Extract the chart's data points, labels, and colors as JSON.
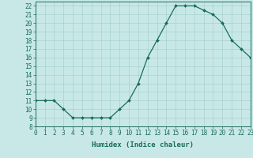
{
  "x": [
    0,
    1,
    2,
    3,
    4,
    5,
    6,
    7,
    8,
    9,
    10,
    11,
    12,
    13,
    14,
    15,
    16,
    17,
    18,
    19,
    20,
    21,
    22,
    23
  ],
  "y": [
    11,
    11,
    11,
    10,
    9,
    9,
    9,
    9,
    9,
    10,
    11,
    13,
    16,
    18,
    20,
    22,
    22,
    22,
    21.5,
    21,
    20,
    18,
    17,
    16
  ],
  "line_color": "#1a6b5a",
  "marker_color": "#1a6b5a",
  "bg_color": "#c8e8e8",
  "grid_color": "#a8d0d0",
  "xlabel": "Humidex (Indice chaleur)",
  "ylim": [
    8,
    22.5
  ],
  "xlim": [
    0,
    23
  ],
  "yticks": [
    8,
    9,
    10,
    11,
    12,
    13,
    14,
    15,
    16,
    17,
    18,
    19,
    20,
    21,
    22
  ],
  "xticks": [
    0,
    1,
    2,
    3,
    4,
    5,
    6,
    7,
    8,
    9,
    10,
    11,
    12,
    13,
    14,
    15,
    16,
    17,
    18,
    19,
    20,
    21,
    22,
    23
  ],
  "tick_label_fontsize": 5.5,
  "xlabel_fontsize": 6.5
}
